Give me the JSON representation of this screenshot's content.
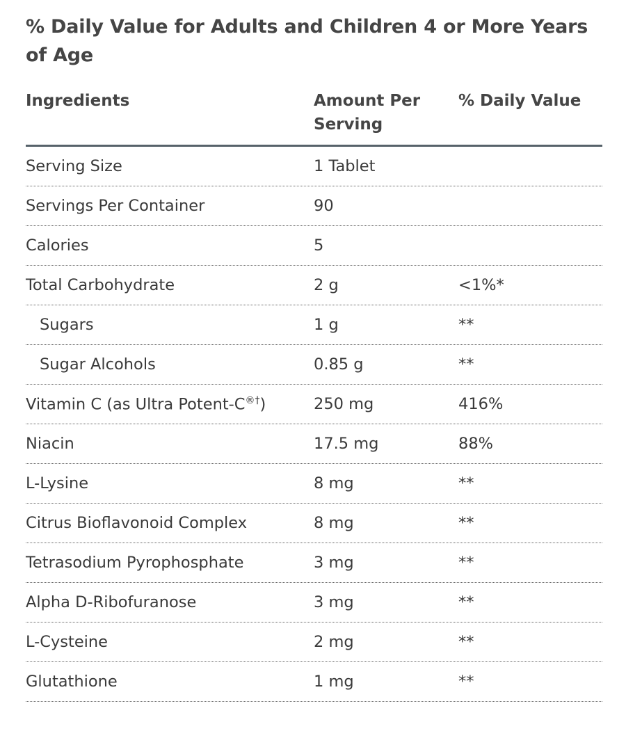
{
  "title": "% Daily Value for Adults and Children 4 or More Years of Age",
  "headers": {
    "ingredients": "Ingredients",
    "amount": "Amount Per Serving",
    "dv": "% Daily Value"
  },
  "rows": [
    {
      "name": "Serving Size",
      "amount": "1 Tablet",
      "dv": "",
      "indent": false
    },
    {
      "name": "Servings Per Container",
      "amount": "90",
      "dv": "",
      "indent": false
    },
    {
      "name": "Calories",
      "amount": "5",
      "dv": "",
      "indent": false
    },
    {
      "name": "Total Carbohydrate",
      "amount": "2 g",
      "dv": "<1%*",
      "indent": false
    },
    {
      "name": "Sugars",
      "amount": "1 g",
      "dv": "**",
      "indent": true
    },
    {
      "name": "Sugar Alcohols",
      "amount": "0.85 g",
      "dv": "**",
      "indent": true
    },
    {
      "name": "Vitamin C (as Ultra Potent-C",
      "sup": "®†",
      "suffix": ")",
      "amount": "250 mg",
      "dv": "416%",
      "indent": false
    },
    {
      "name": "Niacin",
      "amount": "17.5 mg",
      "dv": "88%",
      "indent": false
    },
    {
      "name": "L-Lysine",
      "amount": "8 mg",
      "dv": "**",
      "indent": false
    },
    {
      "name": "Citrus Bioflavonoid Complex",
      "amount": "8 mg",
      "dv": "**",
      "indent": false
    },
    {
      "name": "Tetrasodium Pyrophosphate",
      "amount": "3 mg",
      "dv": "**",
      "indent": false
    },
    {
      "name": "Alpha D-Ribofuranose",
      "amount": "3 mg",
      "dv": "**",
      "indent": false
    },
    {
      "name": "L-Cysteine",
      "amount": "2 mg",
      "dv": "**",
      "indent": false
    },
    {
      "name": "Glutathione",
      "amount": "1 mg",
      "dv": "**",
      "indent": false
    }
  ]
}
